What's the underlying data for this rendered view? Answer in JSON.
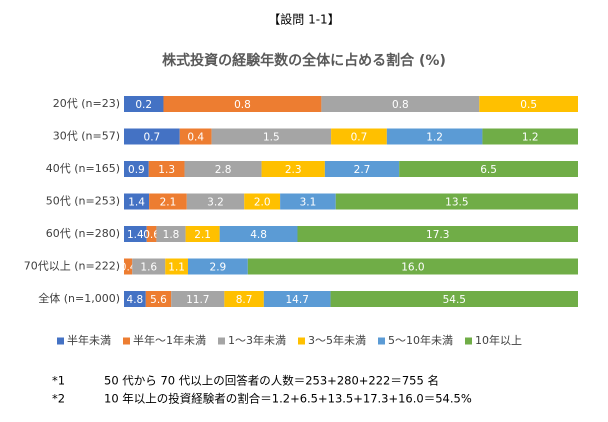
{
  "header": "【設問 1-1】",
  "chart_data": {
    "type": "bar",
    "orientation": "horizontal",
    "stacking": "percent",
    "title": "株式投資の経験年数の全体に占める割合 (%)",
    "categories": [
      "20代 (n=23)",
      "30代 (n=57)",
      "40代 (n=165)",
      "50代 (n=253)",
      "60代 (n=280)",
      "70代以上 (n=222)",
      "全体 (n=1,000)"
    ],
    "series": [
      {
        "name": "半年未満",
        "color": "#4472c4",
        "values": [
          0.2,
          0.7,
          0.9,
          1.4,
          1.4,
          null,
          4.8
        ]
      },
      {
        "name": "半年～1年未満",
        "color": "#ed7d31",
        "values": [
          0.8,
          0.4,
          1.3,
          2.1,
          0.6,
          0.4,
          5.6
        ]
      },
      {
        "name": "1～3年未満",
        "color": "#a5a5a5",
        "values": [
          0.8,
          1.5,
          2.8,
          3.2,
          1.8,
          1.6,
          11.7
        ]
      },
      {
        "name": "3～5年未満",
        "color": "#ffc000",
        "values": [
          0.5,
          0.7,
          2.3,
          2.0,
          2.1,
          1.1,
          8.7
        ],
        "value_labels": [
          "0.5",
          "0.7",
          "2.3",
          "2.0",
          "2.1",
          "1.1",
          "8.7"
        ]
      },
      {
        "name": "5～10年未満",
        "color": "#5b9bd5",
        "values": [
          null,
          1.2,
          2.7,
          3.1,
          4.8,
          2.9,
          14.7
        ]
      },
      {
        "name": "10年以上",
        "color": "#70ad47",
        "values": [
          null,
          1.2,
          6.5,
          13.5,
          17.3,
          16.0,
          54.5
        ],
        "value_labels": [
          null,
          "1.2",
          "6.5",
          "13.5",
          "17.3",
          "16.0",
          "54.5"
        ]
      }
    ],
    "legend": "bottom"
  },
  "footnotes": [
    [
      "*1",
      "50 代から 70 代以上の回答者の人数＝253+280+222＝755 名"
    ],
    [
      "*2",
      "10 年以上の投資経験者の割合＝1.2+6.5+13.5+17.3+16.0＝54.5%"
    ]
  ]
}
